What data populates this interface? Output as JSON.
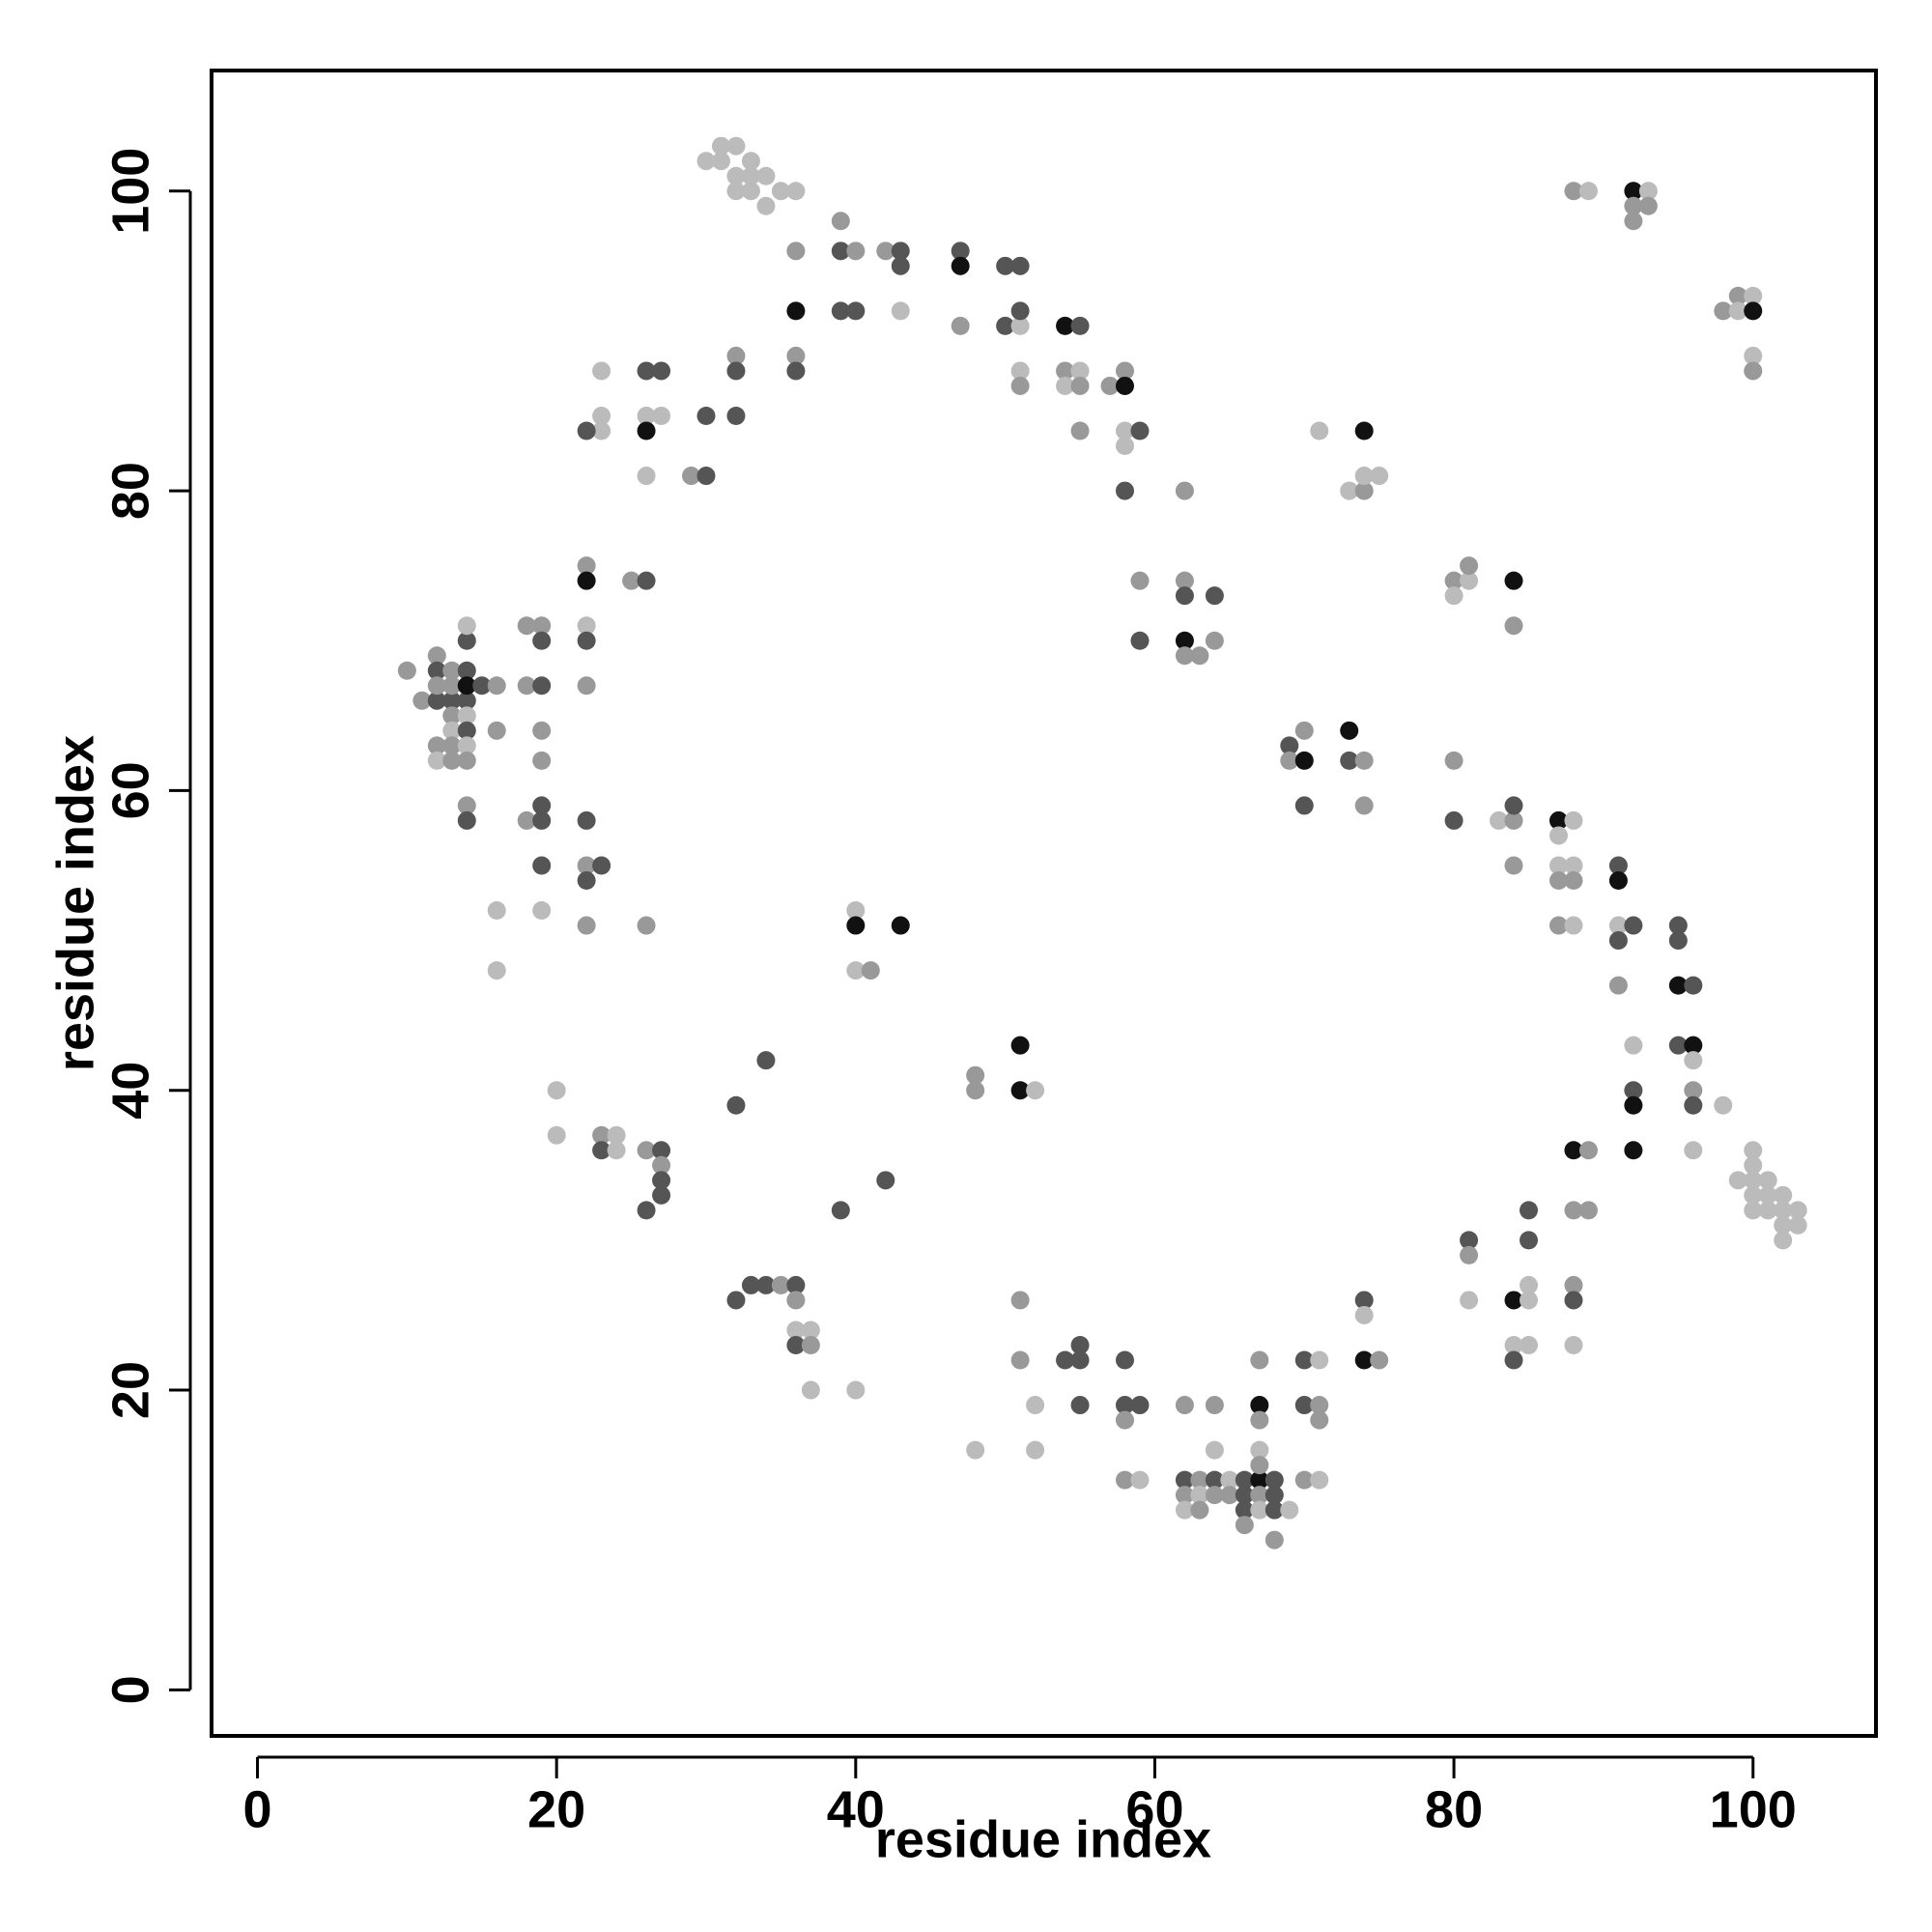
{
  "chart_data": {
    "type": "scatter",
    "xlabel": "residue index",
    "ylabel": "residue index",
    "xlim": [
      -3.07,
      108.22
    ],
    "ylim": [
      -3.07,
      108.04
    ],
    "xticks": [
      0,
      20,
      40,
      60,
      80,
      100
    ],
    "yticks": [
      0,
      20,
      40,
      60,
      80,
      100
    ],
    "x": [
      30,
      31,
      33,
      31,
      32,
      32,
      33,
      34,
      32,
      33,
      35,
      36,
      34,
      36,
      39,
      39,
      40,
      42,
      43,
      43,
      47,
      47,
      50,
      51,
      36,
      39,
      40,
      43,
      47,
      50,
      51,
      51,
      54,
      55,
      36,
      36,
      32,
      32,
      26,
      27,
      23,
      23,
      23,
      26,
      27,
      26,
      22,
      30,
      32,
      26,
      29,
      30,
      51,
      51,
      54,
      55,
      54,
      55,
      57,
      58,
      58,
      58,
      59,
      58,
      55,
      58,
      62,
      71,
      74,
      73,
      74,
      74,
      75,
      22,
      22,
      25,
      26,
      59,
      62,
      62,
      64,
      59,
      62,
      63,
      62,
      64,
      80,
      81,
      81,
      80,
      84,
      84,
      10,
      12,
      12,
      13,
      14,
      14,
      14,
      11,
      12,
      13,
      14,
      12,
      13,
      14,
      15,
      16,
      13,
      14,
      13,
      14,
      16,
      12,
      13,
      14,
      12,
      13,
      14,
      14,
      14,
      18,
      19,
      19,
      22,
      22,
      18,
      19,
      22,
      19,
      19,
      18,
      19,
      19,
      19,
      22,
      22,
      23,
      22,
      16,
      19,
      16,
      22,
      26,
      40,
      40,
      43,
      40,
      41,
      69,
      69,
      70,
      70,
      73,
      73,
      74,
      70,
      74,
      80,
      80,
      83,
      84,
      84,
      84,
      87,
      88,
      87,
      87,
      88,
      87,
      88,
      87,
      88,
      91,
      91,
      91,
      92,
      91,
      95,
      95,
      91,
      95,
      96,
      92,
      95,
      96,
      96,
      92,
      92,
      96,
      96,
      98,
      92,
      88,
      89,
      96,
      99,
      100,
      100,
      100,
      101,
      100,
      101,
      102,
      100,
      101,
      102,
      103,
      102,
      103,
      102,
      88,
      89,
      92,
      93,
      92,
      93,
      92,
      98,
      99,
      99,
      100,
      100,
      100,
      100,
      20,
      20,
      23,
      24,
      23,
      24,
      26,
      27,
      27,
      27,
      27,
      26,
      32,
      34,
      39,
      42,
      48,
      48,
      51,
      51,
      52,
      32,
      33,
      34,
      35,
      36,
      36,
      36,
      37,
      36,
      37,
      37,
      40,
      51,
      51,
      52,
      52,
      48,
      54,
      55,
      55,
      55,
      58,
      58,
      59,
      58,
      58,
      59,
      62,
      64,
      64,
      62,
      63,
      64,
      65,
      66,
      67,
      68,
      62,
      63,
      64,
      65,
      66,
      67,
      68,
      62,
      63,
      66,
      67,
      68,
      69,
      66,
      68,
      67,
      67,
      67,
      67,
      67,
      70,
      71,
      70,
      71,
      71,
      70,
      71,
      74,
      74,
      74,
      75,
      81,
      81,
      81,
      84,
      85,
      85,
      85,
      85,
      84,
      85,
      84,
      88,
      89,
      88,
      88,
      88
    ],
    "series": [
      {
        "values": [
          102,
          102,
          102,
          103,
          103,
          101,
          101,
          101,
          100,
          100,
          100,
          100,
          99,
          96,
          98,
          96,
          96,
          96,
          96,
          95,
          96,
          95,
          95,
          95,
          92,
          92,
          92,
          92,
          91,
          91,
          91,
          92,
          91,
          91,
          89,
          88,
          89,
          88,
          88,
          88,
          88,
          85,
          84,
          85,
          85,
          84,
          84,
          85,
          85,
          81,
          81,
          81,
          88,
          87,
          88,
          88,
          87,
          87,
          87,
          88,
          87,
          84,
          84,
          83,
          84,
          80,
          80,
          84,
          84,
          80,
          80,
          81,
          81,
          75,
          74,
          74,
          74,
          74,
          74,
          73,
          73,
          70,
          70,
          69,
          69,
          70,
          74,
          74,
          75,
          73,
          74,
          71,
          68,
          69,
          68,
          68,
          68,
          70,
          71,
          66,
          66,
          66,
          66,
          67,
          67,
          67,
          67,
          67,
          65,
          65,
          64,
          64,
          64,
          63,
          63,
          63,
          62,
          62,
          62,
          59,
          58,
          71,
          71,
          70,
          71,
          70,
          67,
          67,
          67,
          64,
          62,
          58,
          58,
          59,
          55,
          58,
          55,
          55,
          54,
          52,
          52,
          48,
          51,
          51,
          52,
          51,
          51,
          48,
          48,
          63,
          62,
          64,
          62,
          64,
          62,
          62,
          59,
          59,
          62,
          58,
          58,
          58,
          59,
          55,
          58,
          58,
          57,
          55,
          55,
          54,
          54,
          51,
          51,
          55,
          54,
          51,
          51,
          50,
          51,
          50,
          47,
          47,
          47,
          43,
          43,
          43,
          42,
          40,
          39,
          40,
          39,
          39,
          36,
          36,
          36,
          36,
          34,
          36,
          35,
          34,
          34,
          33,
          33,
          33,
          32,
          32,
          32,
          32,
          31,
          31,
          30,
          100,
          100,
          100,
          100,
          99,
          99,
          98,
          92,
          93,
          92,
          93,
          92,
          89,
          88,
          40,
          37,
          37,
          37,
          36,
          36,
          36,
          36,
          35,
          34,
          33,
          32,
          39,
          42,
          32,
          34,
          41,
          40,
          43,
          40,
          40,
          26,
          27,
          27,
          27,
          27,
          26,
          24,
          24,
          23,
          23,
          20,
          20,
          26,
          22,
          19,
          16,
          16,
          22,
          22,
          23,
          19,
          22,
          19,
          19,
          18,
          14,
          14,
          19,
          19,
          16,
          14,
          14,
          14,
          14,
          14,
          14,
          14,
          13,
          13,
          13,
          13,
          13,
          13,
          13,
          12,
          12,
          12,
          12,
          12,
          12,
          11,
          10,
          22,
          19,
          18,
          16,
          15,
          22,
          22,
          19,
          19,
          18,
          14,
          14,
          26,
          25,
          22,
          22,
          30,
          29,
          26,
          26,
          27,
          26,
          32,
          30,
          23,
          23,
          22,
          32,
          32,
          27,
          26,
          23
        ],
        "colors": [
          "#bbb",
          "#bbb",
          "#bbb",
          "#bbb",
          "#bbb",
          "#bbb",
          "#bbb",
          "#bbb",
          "#bbb",
          "#bbb",
          "#bbb",
          "#bbb",
          "#bbb",
          "#999",
          "#999",
          "#555",
          "#999",
          "#999",
          "#555",
          "#555",
          "#555",
          "#111",
          "#555",
          "#555",
          "#111",
          "#555",
          "#555",
          "#bbb",
          "#999",
          "#555",
          "#bbb",
          "#555",
          "#111",
          "#555",
          "#999",
          "#555",
          "#999",
          "#555",
          "#555",
          "#555",
          "#bbb",
          "#bbb",
          "#bbb",
          "#bbb",
          "#bbb",
          "#111",
          "#555",
          "#555",
          "#555",
          "#bbb",
          "#999",
          "#555",
          "#bbb",
          "#999",
          "#999",
          "#bbb",
          "#bbb",
          "#999",
          "#999",
          "#999",
          "#111",
          "#bbb",
          "#555",
          "#bbb",
          "#999",
          "#555",
          "#999",
          "#bbb",
          "#111",
          "#bbb",
          "#999",
          "#bbb",
          "#bbb",
          "#999",
          "#111",
          "#999",
          "#555",
          "#999",
          "#999",
          "#555",
          "#555",
          "#555",
          "#111",
          "#999",
          "#999",
          "#999",
          "#999",
          "#bbb",
          "#999",
          "#bbb",
          "#111",
          "#999",
          "#999",
          "#999",
          "#555",
          "#999",
          "#555",
          "#555",
          "#bbb",
          "#999",
          "#555",
          "#555",
          "#555",
          "#999",
          "#999",
          "#111",
          "#555",
          "#999",
          "#999",
          "#bbb",
          "#bbb",
          "#555",
          "#999",
          "#999",
          "#999",
          "#bbb",
          "#bbb",
          "#999",
          "#999",
          "#999",
          "#555",
          "#999",
          "#999",
          "#555",
          "#bbb",
          "#555",
          "#999",
          "#555",
          "#999",
          "#999",
          "#999",
          "#999",
          "#555",
          "#555",
          "#555",
          "#555",
          "#999",
          "#555",
          "#555",
          "#bbb",
          "#bbb",
          "#bbb",
          "#999",
          "#999",
          "#bbb",
          "#111",
          "#111",
          "#bbb",
          "#999",
          "#555",
          "#999",
          "#999",
          "#111",
          "#111",
          "#555",
          "#999",
          "#555",
          "#999",
          "#999",
          "#555",
          "#bbb",
          "#999",
          "#555",
          "#999",
          "#111",
          "#bbb",
          "#bbb",
          "#bbb",
          "#bbb",
          "#999",
          "#999",
          "#999",
          "#bbb",
          "#555",
          "#111",
          "#bbb",
          "#555",
          "#555",
          "#555",
          "#555",
          "#999",
          "#111",
          "#555",
          "#bbb",
          "#555",
          "#111",
          "#bbb",
          "#555",
          "#111",
          "#999",
          "#555",
          "#bbb",
          "#111",
          "#111",
          "#999",
          "#bbb",
          "#bbb",
          "#bbb",
          "#bbb",
          "#bbb",
          "#bbb",
          "#bbb",
          "#bbb",
          "#bbb",
          "#bbb",
          "#bbb",
          "#bbb",
          "#bbb",
          "#bbb",
          "#bbb",
          "#bbb",
          "#999",
          "#bbb",
          "#111",
          "#bbb",
          "#999",
          "#999",
          "#999",
          "#999",
          "#999",
          "#bbb",
          "#bbb",
          "#111",
          "#bbb",
          "#999",
          "#bbb",
          "#bbb",
          "#999",
          "#bbb",
          "#555",
          "#bbb",
          "#999",
          "#555",
          "#999",
          "#555",
          "#555",
          "#555",
          "#555",
          "#555",
          "#555",
          "#555",
          "#999",
          "#999",
          "#111",
          "#111",
          "#bbb",
          "#555",
          "#555",
          "#555",
          "#999",
          "#555",
          "#999",
          "#bbb",
          "#bbb",
          "#555",
          "#999",
          "#bbb",
          "#bbb",
          "#999",
          "#999",
          "#bbb",
          "#bbb",
          "#bbb",
          "#555",
          "#555",
          "#555",
          "#555",
          "#555",
          "#555",
          "#555",
          "#999",
          "#999",
          "#bbb",
          "#999",
          "#999",
          "#bbb",
          "#555",
          "#999",
          "#555",
          "#bbb",
          "#555",
          "#111",
          "#555",
          "#999",
          "#bbb",
          "#999",
          "#999",
          "#555",
          "#999",
          "#555",
          "#bbb",
          "#999",
          "#555",
          "#bbb",
          "#555",
          "#bbb",
          "#999",
          "#999",
          "#999",
          "#111",
          "#999",
          "#bbb",
          "#999",
          "#555",
          "#bbb",
          "#555",
          "#999",
          "#999",
          "#999",
          "#bbb",
          "#555",
          "#bbb",
          "#111",
          "#999",
          "#555",
          "#999",
          "#bbb",
          "#111",
          "#bbb",
          "#bbb",
          "#555",
          "#555",
          "#bbb",
          "#bbb",
          "#555",
          "#999",
          "#999",
          "#999",
          "#555",
          "#bbb"
        ]
      }
    ]
  }
}
